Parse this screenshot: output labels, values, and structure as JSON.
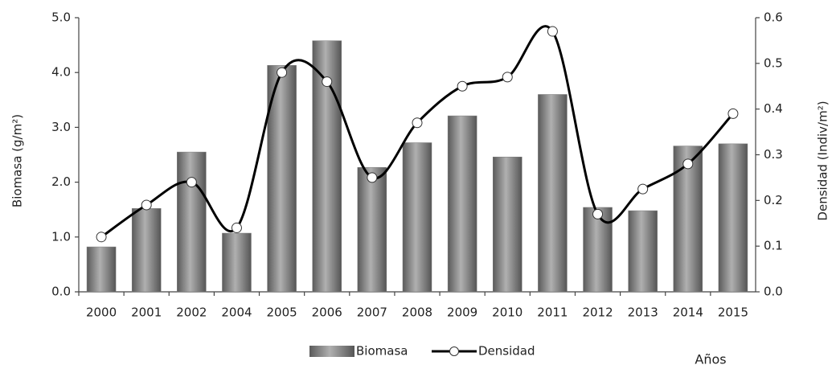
{
  "chart_data": {
    "type": "bar_line",
    "categories": [
      "2000",
      "2001",
      "2002",
      "2004",
      "2005",
      "2006",
      "2007",
      "2008",
      "2009",
      "2010",
      "2011",
      "2012",
      "2013",
      "2014",
      "2015"
    ],
    "series": [
      {
        "name": "Biomasa",
        "type": "bar",
        "color": "#7a7a7a",
        "values": [
          0.82,
          1.52,
          2.55,
          1.07,
          4.13,
          4.58,
          2.27,
          2.72,
          3.21,
          2.46,
          3.6,
          1.54,
          1.48,
          2.66,
          2.7
        ]
      },
      {
        "name": "Densidad",
        "type": "line",
        "axis": "y2",
        "color": "#000000",
        "values": [
          0.12,
          0.19,
          0.24,
          0.14,
          0.48,
          0.46,
          0.25,
          0.37,
          0.45,
          0.47,
          0.57,
          0.17,
          0.225,
          0.28,
          0.39
        ]
      }
    ],
    "ylabel": "Biomasa (g/m²)",
    "y2label": "Densidad (Indiv/m²)",
    "xlabel": "Años",
    "ylim": [
      0,
      5
    ],
    "yticks": [
      {
        "value": 0,
        "label": "0.0"
      },
      {
        "value": 1,
        "label": "1.0"
      },
      {
        "value": 2,
        "label": "2.0"
      },
      {
        "value": 3,
        "label": "3.0"
      },
      {
        "value": 4,
        "label": "4.0"
      },
      {
        "value": 5,
        "label": "5.0"
      }
    ],
    "y2lim": [
      0,
      0.6
    ],
    "y2ticks": [
      {
        "value": 0,
        "label": "0.0"
      },
      0.1,
      0.2,
      0.3,
      0.4,
      0.5,
      0.6
    ],
    "grid": false
  }
}
